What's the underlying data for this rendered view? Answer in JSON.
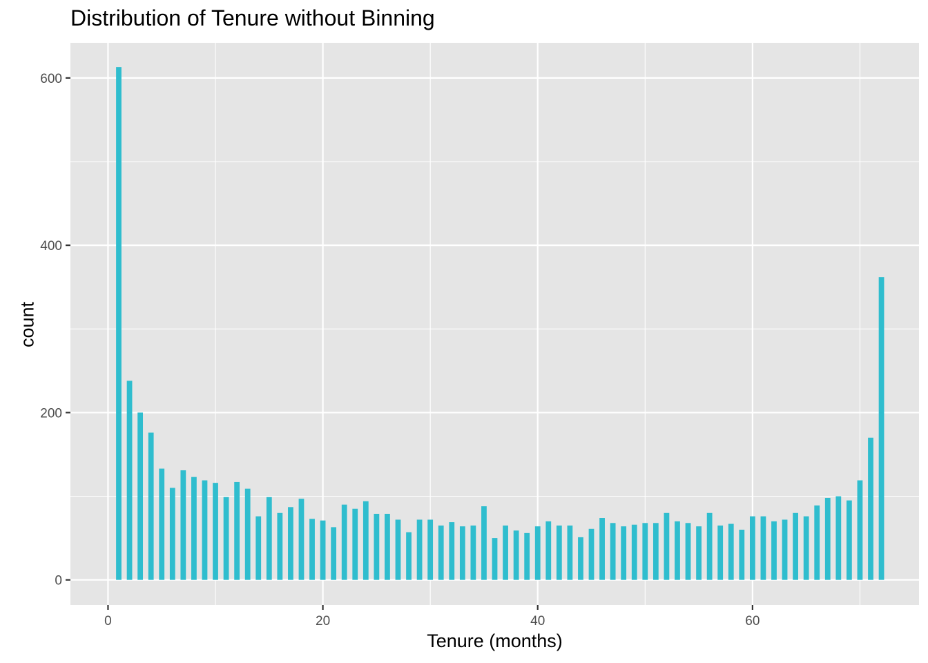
{
  "chart_data": {
    "type": "bar",
    "title": "Distribution of Tenure without Binning",
    "xlabel": "Tenure (months)",
    "ylabel": "count",
    "xlim": [
      -3.5,
      75.5
    ],
    "ylim": [
      -30,
      642
    ],
    "x_ticks": [
      0,
      20,
      40,
      60
    ],
    "y_ticks": [
      0,
      200,
      400,
      600
    ],
    "bar_color": "#2FBDCE",
    "panel_color": "#E5E5E5",
    "grid": true,
    "x": [
      1,
      2,
      3,
      4,
      5,
      6,
      7,
      8,
      9,
      10,
      11,
      12,
      13,
      14,
      15,
      16,
      17,
      18,
      19,
      20,
      21,
      22,
      23,
      24,
      25,
      26,
      27,
      28,
      29,
      30,
      31,
      32,
      33,
      34,
      35,
      36,
      37,
      38,
      39,
      40,
      41,
      42,
      43,
      44,
      45,
      46,
      47,
      48,
      49,
      50,
      51,
      52,
      53,
      54,
      55,
      56,
      57,
      58,
      59,
      60,
      61,
      62,
      63,
      64,
      65,
      66,
      67,
      68,
      69,
      70,
      71,
      72
    ],
    "values": [
      613,
      238,
      200,
      176,
      133,
      110,
      131,
      123,
      119,
      116,
      99,
      117,
      109,
      76,
      99,
      80,
      87,
      97,
      73,
      71,
      63,
      90,
      85,
      94,
      79,
      79,
      72,
      57,
      72,
      72,
      65,
      69,
      64,
      65,
      88,
      50,
      65,
      59,
      56,
      64,
      70,
      65,
      65,
      51,
      61,
      74,
      68,
      64,
      66,
      68,
      68,
      80,
      70,
      68,
      64,
      80,
      65,
      67,
      60,
      76,
      76,
      70,
      72,
      80,
      76,
      89,
      98,
      100,
      95,
      119,
      170,
      362
    ]
  }
}
